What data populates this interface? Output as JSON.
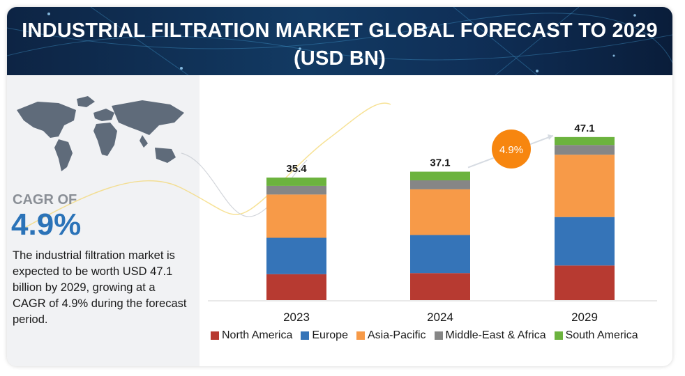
{
  "header": {
    "title": "INDUSTRIAL FILTRATION MARKET GLOBAL FORECAST TO 2029 (USD BN)"
  },
  "sidebar": {
    "cagr_label": "CAGR OF",
    "cagr_value": "4.9%",
    "description": "The industrial filtration market is expected to be worth USD 47.1 billion by 2029, growing at a CAGR of 4.9% during the forecast period."
  },
  "callout": {
    "label": "4.9%"
  },
  "colors": {
    "North America": "#b73a31",
    "Europe": "#3574b8",
    "Asia-Pacific": "#f79a48",
    "Middle-East & Africa": "#868686",
    "South America": "#6cb33e"
  },
  "chart_data": {
    "type": "bar",
    "stacked": true,
    "categories": [
      "2023",
      "2024",
      "2029"
    ],
    "totals": [
      35.4,
      37.1,
      47.1
    ],
    "series": [
      {
        "name": "North America",
        "values": [
          7.5,
          7.8,
          10.0
        ]
      },
      {
        "name": "Europe",
        "values": [
          10.5,
          11.0,
          14.0
        ]
      },
      {
        "name": "Asia-Pacific",
        "values": [
          12.5,
          13.2,
          18.0
        ]
      },
      {
        "name": "Middle-East & Africa",
        "values": [
          2.5,
          2.6,
          2.8
        ]
      },
      {
        "name": "South America",
        "values": [
          2.4,
          2.5,
          2.3
        ]
      }
    ],
    "ylim": [
      0,
      50
    ],
    "legend_position": "bottom",
    "grid": false
  }
}
